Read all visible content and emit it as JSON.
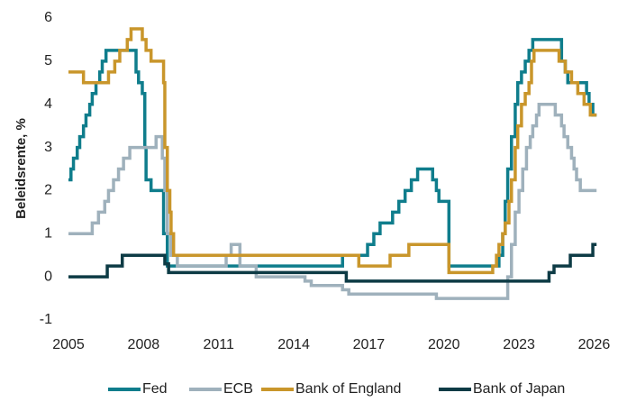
{
  "chart_data": {
    "type": "line",
    "step": "post",
    "ylabel": "Beleidsrente, %",
    "xlim": [
      2005,
      2026.2
    ],
    "xticks": [
      2005,
      2008,
      2011,
      2014,
      2017,
      2020,
      2023,
      2026
    ],
    "ylim": [
      -1,
      6
    ],
    "yticks": [
      -1,
      0,
      1,
      2,
      3,
      4,
      5,
      6
    ],
    "grid": false,
    "legend": "bottom",
    "series": [
      {
        "name": "Fed",
        "color": "#0f7d8c",
        "x": [
          2005.0,
          2005.1,
          2005.2,
          2005.35,
          2005.45,
          2005.6,
          2005.7,
          2005.85,
          2005.95,
          2006.1,
          2006.25,
          2006.35,
          2006.5,
          2007.7,
          2007.8,
          2007.95,
          2008.05,
          2008.1,
          2008.3,
          2008.8,
          2008.95,
          2015.95,
          2016.95,
          2017.2,
          2017.45,
          2017.95,
          2018.2,
          2018.45,
          2018.7,
          2018.95,
          2019.55,
          2019.7,
          2019.8,
          2020.2,
          2022.2,
          2022.35,
          2022.45,
          2022.55,
          2022.7,
          2022.85,
          2022.95,
          2023.1,
          2023.25,
          2023.4,
          2023.55,
          2024.7,
          2024.85,
          2024.95,
          2025.7,
          2025.8,
          2025.95,
          2026.1
        ],
        "values": [
          2.25,
          2.5,
          2.75,
          3.0,
          3.25,
          3.5,
          3.75,
          4.0,
          4.25,
          4.5,
          4.75,
          5.0,
          5.25,
          4.75,
          4.5,
          4.25,
          3.0,
          2.25,
          2.0,
          1.0,
          0.25,
          0.5,
          0.75,
          1.0,
          1.25,
          1.5,
          1.75,
          2.0,
          2.25,
          2.5,
          2.25,
          2.0,
          1.75,
          0.25,
          0.5,
          1.0,
          1.75,
          2.5,
          3.25,
          4.0,
          4.5,
          4.75,
          5.0,
          5.25,
          5.5,
          5.0,
          4.75,
          4.5,
          4.25,
          4.0,
          3.75,
          3.75
        ]
      },
      {
        "name": "ECB",
        "color": "#9fb1bc",
        "x": [
          2005.0,
          2005.95,
          2006.2,
          2006.45,
          2006.6,
          2006.8,
          2007.0,
          2007.2,
          2007.45,
          2008.5,
          2008.75,
          2008.85,
          2008.95,
          2009.1,
          2009.35,
          2011.3,
          2011.5,
          2011.85,
          2012.5,
          2014.45,
          2014.7,
          2015.95,
          2016.2,
          2019.7,
          2022.55,
          2022.7,
          2022.85,
          2023.0,
          2023.15,
          2023.3,
          2023.45,
          2023.55,
          2023.7,
          2023.8,
          2024.45,
          2024.7,
          2024.8,
          2024.95,
          2025.1,
          2025.2,
          2025.3,
          2025.45,
          2026.1
        ],
        "values": [
          1.0,
          1.25,
          1.5,
          1.75,
          2.0,
          2.25,
          2.5,
          2.75,
          3.0,
          3.25,
          2.75,
          2.0,
          1.0,
          0.5,
          0.25,
          0.5,
          0.75,
          0.25,
          0.0,
          -0.1,
          -0.2,
          -0.3,
          -0.4,
          -0.5,
          0.0,
          0.75,
          1.5,
          2.0,
          2.5,
          3.0,
          3.25,
          3.5,
          3.75,
          4.0,
          3.75,
          3.5,
          3.25,
          3.0,
          2.75,
          2.5,
          2.25,
          2.0,
          2.0
        ]
      },
      {
        "name": "Bank of England",
        "color": "#c9962b",
        "x": [
          2005.0,
          2005.6,
          2006.6,
          2006.85,
          2007.05,
          2007.35,
          2007.5,
          2007.95,
          2008.1,
          2008.3,
          2008.8,
          2008.85,
          2008.95,
          2009.05,
          2009.1,
          2009.2,
          2016.6,
          2017.85,
          2018.6,
          2020.2,
          2021.95,
          2022.1,
          2022.2,
          2022.35,
          2022.45,
          2022.6,
          2022.7,
          2022.85,
          2022.95,
          2023.1,
          2023.25,
          2023.4,
          2023.5,
          2023.6,
          2024.6,
          2024.85,
          2025.1,
          2025.35,
          2025.6,
          2025.85,
          2026.1
        ],
        "values": [
          4.75,
          4.5,
          4.75,
          5.0,
          5.25,
          5.5,
          5.75,
          5.5,
          5.25,
          5.0,
          4.5,
          3.0,
          2.0,
          1.5,
          1.0,
          0.5,
          0.25,
          0.5,
          0.75,
          0.1,
          0.25,
          0.5,
          0.75,
          1.0,
          1.25,
          1.75,
          2.25,
          3.0,
          3.5,
          4.0,
          4.25,
          4.5,
          5.0,
          5.25,
          5.0,
          4.75,
          4.5,
          4.25,
          4.0,
          3.75,
          3.75
        ]
      },
      {
        "name": "Bank of Japan",
        "color": "#0d3b45",
        "x": [
          2005.0,
          2006.55,
          2007.15,
          2008.85,
          2009.0,
          2016.1,
          2024.2,
          2024.4,
          2025.05,
          2025.95,
          2026.1
        ],
        "values": [
          0.0,
          0.25,
          0.5,
          0.3,
          0.1,
          -0.1,
          0.1,
          0.25,
          0.5,
          0.75,
          0.75
        ]
      }
    ]
  }
}
